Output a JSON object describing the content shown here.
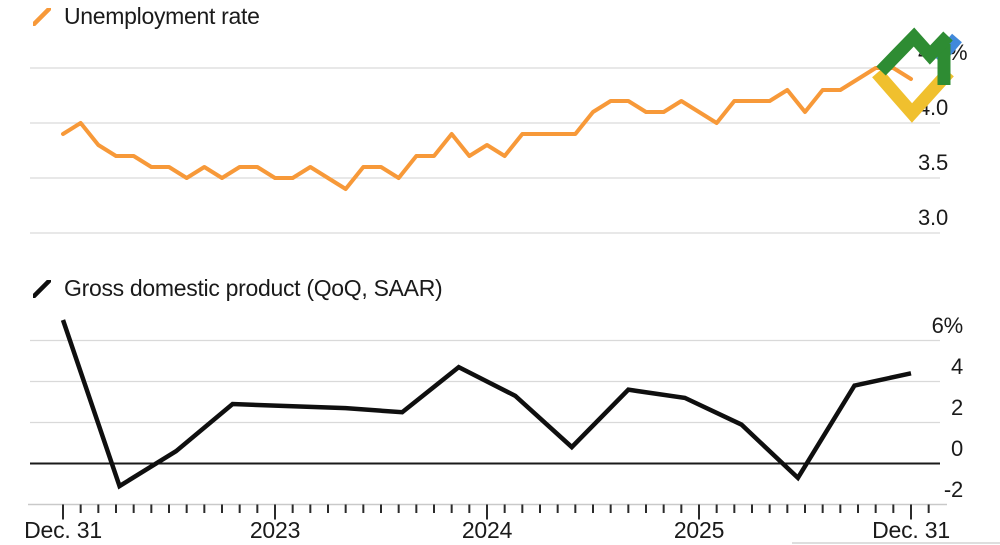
{
  "colors": {
    "unemployment_line": "#F79939",
    "gdp_line": "#0f0f0f",
    "gridline": "#d9d9d9",
    "zero_line": "#1a1a1a",
    "axis_line": "#c9c9c9",
    "tick": "#2b2b2b",
    "text": "#1a1a1a"
  },
  "logo": {
    "name": "litefinance-logo",
    "green": "#2E8C33",
    "yellow": "#F0C02E",
    "blue": "#4189DB"
  },
  "x_axis": {
    "tick_labels": [
      "Dec. 31",
      "2023",
      "2024",
      "2025",
      "Dec. 31"
    ]
  },
  "chart_data": [
    {
      "type": "line",
      "title": "Unemployment rate",
      "unit": "%",
      "frequency": "monthly",
      "grid": true,
      "legend_position": "top-left",
      "y_ticks": [
        "4.5%",
        "4.0",
        "3.5",
        "3.0"
      ],
      "y_tick_values": [
        4.5,
        4.0,
        3.5,
        3.0
      ],
      "ylim": [
        2.9,
        4.75
      ],
      "x": [
        "2021-12",
        "2022-01",
        "2022-02",
        "2022-03",
        "2022-04",
        "2022-05",
        "2022-06",
        "2022-07",
        "2022-08",
        "2022-09",
        "2022-10",
        "2022-11",
        "2022-12",
        "2023-01",
        "2023-02",
        "2023-03",
        "2023-04",
        "2023-05",
        "2023-06",
        "2023-07",
        "2023-08",
        "2023-09",
        "2023-10",
        "2023-11",
        "2023-12",
        "2024-01",
        "2024-02",
        "2024-03",
        "2024-04",
        "2024-05",
        "2024-06",
        "2024-07",
        "2024-08",
        "2024-09",
        "2024-10",
        "2024-11",
        "2024-12",
        "2025-01",
        "2025-02",
        "2025-03",
        "2025-04",
        "2025-05",
        "2025-06",
        "2025-07",
        "2025-08",
        "2025-09",
        "2025-10",
        "2025-11",
        "2025-12"
      ],
      "values": [
        3.9,
        4.0,
        3.8,
        3.7,
        3.7,
        3.6,
        3.6,
        3.5,
        3.6,
        3.5,
        3.6,
        3.6,
        3.5,
        3.5,
        3.6,
        3.5,
        3.4,
        3.6,
        3.6,
        3.5,
        3.7,
        3.7,
        3.9,
        3.7,
        3.8,
        3.7,
        3.9,
        3.9,
        3.9,
        3.9,
        4.1,
        4.2,
        4.2,
        4.1,
        4.1,
        4.2,
        4.1,
        4.0,
        4.2,
        4.2,
        4.2,
        4.3,
        4.1,
        4.3,
        4.3,
        4.4,
        4.5,
        4.5,
        4.4
      ]
    },
    {
      "type": "line",
      "title": "Gross domestic product (QoQ, SAAR)",
      "unit": "%",
      "frequency": "quarterly",
      "grid": true,
      "legend_position": "top-left",
      "y_ticks": [
        "6%",
        "4",
        "2",
        "0",
        "-2"
      ],
      "y_tick_values": [
        6,
        4,
        2,
        0,
        -2
      ],
      "ylim": [
        -2.5,
        7.2
      ],
      "x": [
        "2021-Q4",
        "2022-Q1",
        "2022-Q2",
        "2022-Q3",
        "2022-Q4",
        "2023-Q1",
        "2023-Q2",
        "2023-Q3",
        "2023-Q4",
        "2024-Q1",
        "2024-Q2",
        "2024-Q3",
        "2024-Q4",
        "2025-Q1",
        "2025-Q2",
        "2025-Q3"
      ],
      "values": [
        7.0,
        -1.1,
        0.6,
        2.9,
        2.8,
        2.7,
        2.5,
        4.7,
        3.3,
        0.8,
        3.6,
        3.2,
        1.9,
        -0.7,
        3.8,
        4.4
      ]
    }
  ]
}
